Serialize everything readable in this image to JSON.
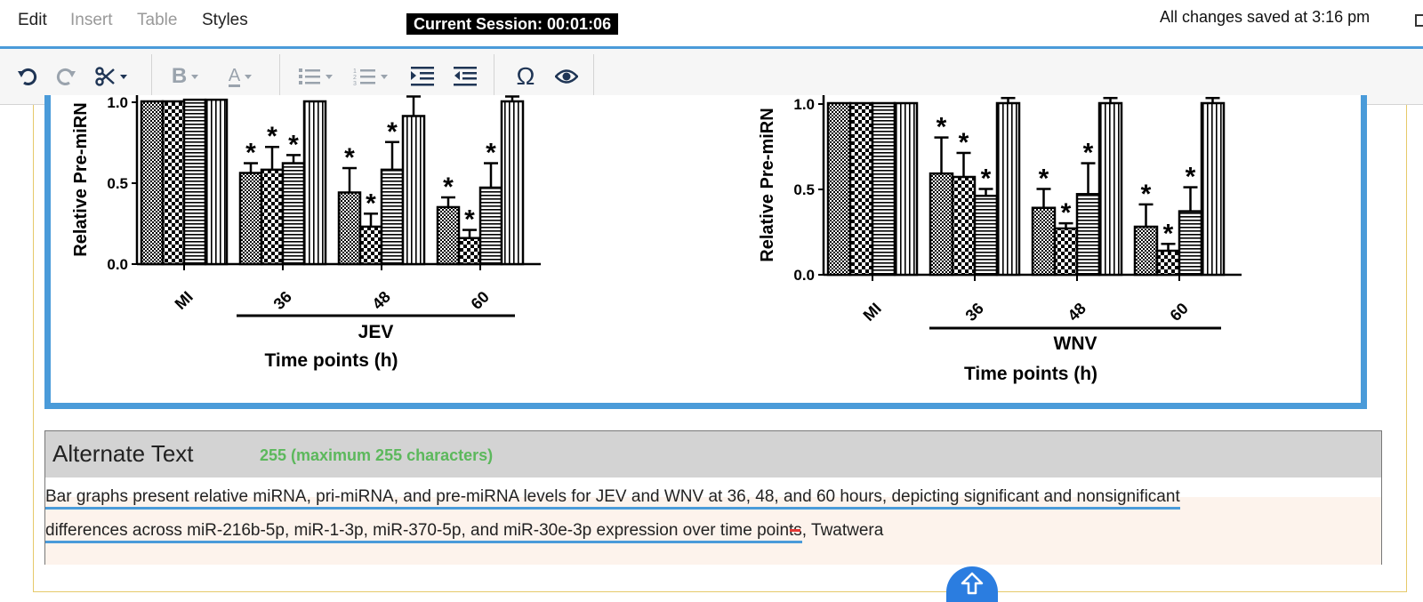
{
  "menubar": {
    "items": [
      {
        "label": "Edit",
        "enabled": true
      },
      {
        "label": "Insert",
        "enabled": false
      },
      {
        "label": "Table",
        "enabled": false
      },
      {
        "label": "Styles",
        "enabled": true
      }
    ],
    "session": "Current Session: 00:01:06",
    "saved_status": "All changes saved at 3:16 pm"
  },
  "toolbar": {
    "buttons": [
      {
        "name": "undo-icon",
        "enabled": true
      },
      {
        "name": "redo-icon",
        "enabled": false
      },
      {
        "name": "scissors-icon",
        "enabled": true
      },
      {
        "name": "bold-icon",
        "enabled": false
      },
      {
        "name": "font-color-icon",
        "enabled": false
      },
      {
        "name": "bullet-list-icon",
        "enabled": false
      },
      {
        "name": "numbered-list-icon",
        "enabled": false
      },
      {
        "name": "indent-icon",
        "enabled": true
      },
      {
        "name": "outdent-icon",
        "enabled": true
      },
      {
        "name": "special-character-icon",
        "enabled": true
      },
      {
        "name": "preview-icon",
        "enabled": true
      }
    ],
    "bold_glyph": "B",
    "font_color_glyph": "A",
    "omega_glyph": "Ω"
  },
  "figure": {
    "panels": [
      {
        "ylabel": "Relative Pre-miRN",
        "yticks": [
          "0.0",
          "0.5",
          "1.0"
        ],
        "categories": [
          "MI",
          "36",
          "48",
          "60"
        ],
        "group_label": "JEV",
        "xlabel": "Time points (h)"
      },
      {
        "ylabel": "Relative Pre-miRN",
        "yticks": [
          "0.0",
          "0.5",
          "1.0"
        ],
        "categories": [
          "MI",
          "36",
          "48",
          "60"
        ],
        "group_label": "WNV",
        "xlabel": "Time points (h)"
      }
    ],
    "significance_mark": "*"
  },
  "chart_data": [
    {
      "type": "bar",
      "categories": [
        "MI",
        "36",
        "48",
        "60"
      ],
      "ylabel": "Relative Pre-miRN",
      "xlabel": "Time points (h)",
      "group_label": "JEV",
      "ylim": [
        0,
        1.0
      ],
      "series": [
        {
          "pattern": "dense-dot",
          "values": [
            1.0,
            0.56,
            0.44,
            0.35
          ],
          "errors": [
            0,
            0.06,
            0.15,
            0.06
          ],
          "significant": [
            false,
            true,
            true,
            true
          ]
        },
        {
          "pattern": "checker",
          "values": [
            1.0,
            0.58,
            0.23,
            0.16
          ],
          "errors": [
            0,
            0.14,
            0.08,
            0.05
          ],
          "significant": [
            false,
            true,
            true,
            true
          ]
        },
        {
          "pattern": "horizontal",
          "values": [
            1.01,
            0.62,
            0.58,
            0.47
          ],
          "errors": [
            0,
            0.05,
            0.17,
            0.15
          ],
          "significant": [
            false,
            true,
            true,
            true
          ]
        },
        {
          "pattern": "vertical",
          "values": [
            1.01,
            1.0,
            0.91,
            1.0
          ],
          "errors": [
            0,
            0,
            0.12,
            0.03
          ],
          "significant": [
            false,
            false,
            false,
            false
          ]
        }
      ]
    },
    {
      "type": "bar",
      "categories": [
        "MI",
        "36",
        "48",
        "60"
      ],
      "ylabel": "Relative Pre-miRN",
      "xlabel": "Time points (h)",
      "group_label": "WNV",
      "ylim": [
        0,
        1.0
      ],
      "series": [
        {
          "pattern": "dense-dot",
          "values": [
            1.0,
            0.59,
            0.39,
            0.28
          ],
          "errors": [
            0,
            0.21,
            0.11,
            0.13
          ],
          "significant": [
            false,
            true,
            true,
            true
          ]
        },
        {
          "pattern": "checker",
          "values": [
            1.0,
            0.57,
            0.27,
            0.14
          ],
          "errors": [
            0,
            0.14,
            0.03,
            0.04
          ],
          "significant": [
            false,
            true,
            true,
            true
          ]
        },
        {
          "pattern": "horizontal",
          "values": [
            1.0,
            0.46,
            0.47,
            0.37
          ],
          "errors": [
            0,
            0.04,
            0.18,
            0.14
          ],
          "significant": [
            false,
            true,
            true,
            true
          ]
        },
        {
          "pattern": "vertical",
          "values": [
            1.0,
            1.0,
            1.0,
            1.0
          ],
          "errors": [
            0,
            0.03,
            0.03,
            0.03
          ],
          "significant": [
            false,
            false,
            false,
            false
          ]
        }
      ]
    }
  ],
  "alt_text": {
    "title": "Alternate Text",
    "counter": "255 (maximum 255 characters)",
    "line1": "Bar graphs present relative miRNA, pri-miRNA, and pre-miRNA levels for JEV and WNV at 36, 48, and 60 hours, depicting significant and nonsignificant",
    "line2": "differences across miR-216b-5p, miR-1-3p, miR-370-5p, and miR-30e-3p expression over time points",
    "line2_suffix": ", Twatwera"
  }
}
